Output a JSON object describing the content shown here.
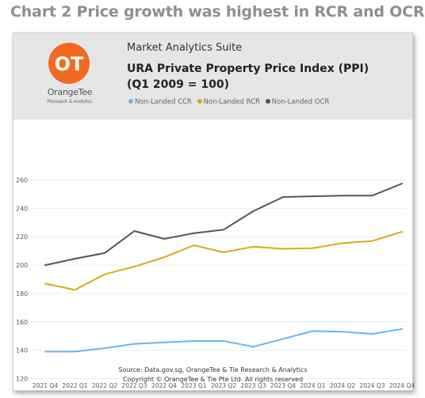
{
  "page_title": "Chart 2 Price growth was highest in RCR and OCR",
  "header": {
    "logo": {
      "mark": "OT",
      "name": "OrangeTee",
      "tagline": "Research & Analytics"
    },
    "suite_name": "Market Analytics Suite",
    "title_line1": "URA Private Property Price Index (PPI)",
    "title_line2": "(Q1 2009 = 100)"
  },
  "source_line1": "Source: Data.gov.sg, OrangeTee & Tie Research & Analytics",
  "source_line2": "Copyright © OrangeTee & Tie Pte Ltd. All rights reserved",
  "colors": {
    "ccr": "#6cb4ee",
    "rcr": "#d4ac0d",
    "ocr": "#555555",
    "logo": "#f26a21"
  },
  "chart_data": {
    "type": "line",
    "title": "URA Private Property Price Index (PPI)",
    "subtitle": "(Q1 2009 = 100)",
    "xlabel": "",
    "ylabel": "",
    "categories": [
      "2021 Q4",
      "2022 Q1",
      "2022 Q2",
      "2022 Q3",
      "2022 Q4",
      "2023 Q1",
      "2023 Q2",
      "2023 Q3",
      "2023 Q4",
      "2024 Q1",
      "2024 Q2",
      "2024 Q3",
      "2024 Q4"
    ],
    "yticks": [
      120,
      140,
      160,
      180,
      200,
      220,
      240,
      260
    ],
    "ylim": [
      120,
      265
    ],
    "grid": true,
    "legend_position": "top",
    "series": [
      {
        "name": "Non-Landed CCR",
        "color": "#6cb4ee",
        "values": [
          139.0,
          139.0,
          141.5,
          144.5,
          145.5,
          146.5,
          146.5,
          142.5,
          148.0,
          153.5,
          153.0,
          151.5,
          155.0
        ]
      },
      {
        "name": "Non-Landed RCR",
        "color": "#d4ac0d",
        "values": [
          187.0,
          182.5,
          193.5,
          199.0,
          205.5,
          214.0,
          209.0,
          213.0,
          211.5,
          212.0,
          215.5,
          217.0,
          223.5
        ]
      },
      {
        "name": "Non-Landed OCR",
        "color": "#555555",
        "values": [
          200.0,
          204.5,
          208.5,
          224.0,
          218.5,
          222.5,
          225.0,
          238.0,
          248.0,
          248.5,
          249.0,
          249.0,
          257.5
        ]
      }
    ]
  }
}
